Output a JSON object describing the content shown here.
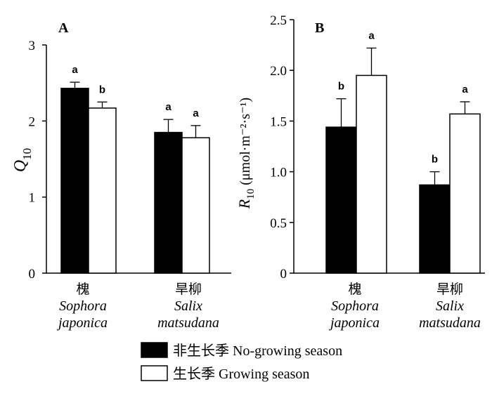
{
  "chart_data": [
    {
      "type": "bar",
      "panel": "A",
      "ylabel_main": "Q",
      "ylabel_sub": "10",
      "ylim": [
        0,
        3
      ],
      "yticks": [
        "0",
        "1",
        "2",
        "3"
      ],
      "categories": [
        {
          "cn": "槐",
          "latin1": "Sophora",
          "latin2": "japonica"
        },
        {
          "cn": "旱柳",
          "latin1": "Salix",
          "latin2": "matsudana"
        }
      ],
      "series": [
        {
          "name": "非生长季 No-growing season",
          "color": "#000000",
          "values": [
            2.43,
            1.85
          ],
          "errors": [
            0.08,
            0.17
          ],
          "letters": [
            "a",
            "a"
          ]
        },
        {
          "name": "生长季 Growing season",
          "color": "#ffffff",
          "values": [
            2.17,
            1.78
          ],
          "errors": [
            0.08,
            0.16
          ],
          "letters": [
            "b",
            "a"
          ]
        }
      ]
    },
    {
      "type": "bar",
      "panel": "B",
      "ylabel_main": "R",
      "ylabel_sub": "10",
      "ylabel_unit": " (μmol·m⁻²·s⁻¹)",
      "ylim": [
        0,
        2.5
      ],
      "yticks": [
        "0",
        "0.5",
        "1.0",
        "1.5",
        "2.0",
        "2.5"
      ],
      "categories": [
        {
          "cn": "槐",
          "latin1": "Sophora",
          "latin2": "japonica"
        },
        {
          "cn": "旱柳",
          "latin1": "Salix",
          "latin2": "matsudana"
        }
      ],
      "series": [
        {
          "name": "非生长季 No-growing season",
          "color": "#000000",
          "values": [
            1.44,
            0.87
          ],
          "errors": [
            0.28,
            0.13
          ],
          "letters": [
            "b",
            "b"
          ]
        },
        {
          "name": "生长季 Growing season",
          "color": "#ffffff",
          "values": [
            1.95,
            1.57
          ],
          "errors": [
            0.27,
            0.12
          ],
          "letters": [
            "a",
            "a"
          ]
        }
      ]
    }
  ],
  "legend": [
    {
      "label": "非生长季 No-growing season",
      "color": "#000000"
    },
    {
      "label": "生长季 Growing season",
      "color": "#ffffff"
    }
  ]
}
